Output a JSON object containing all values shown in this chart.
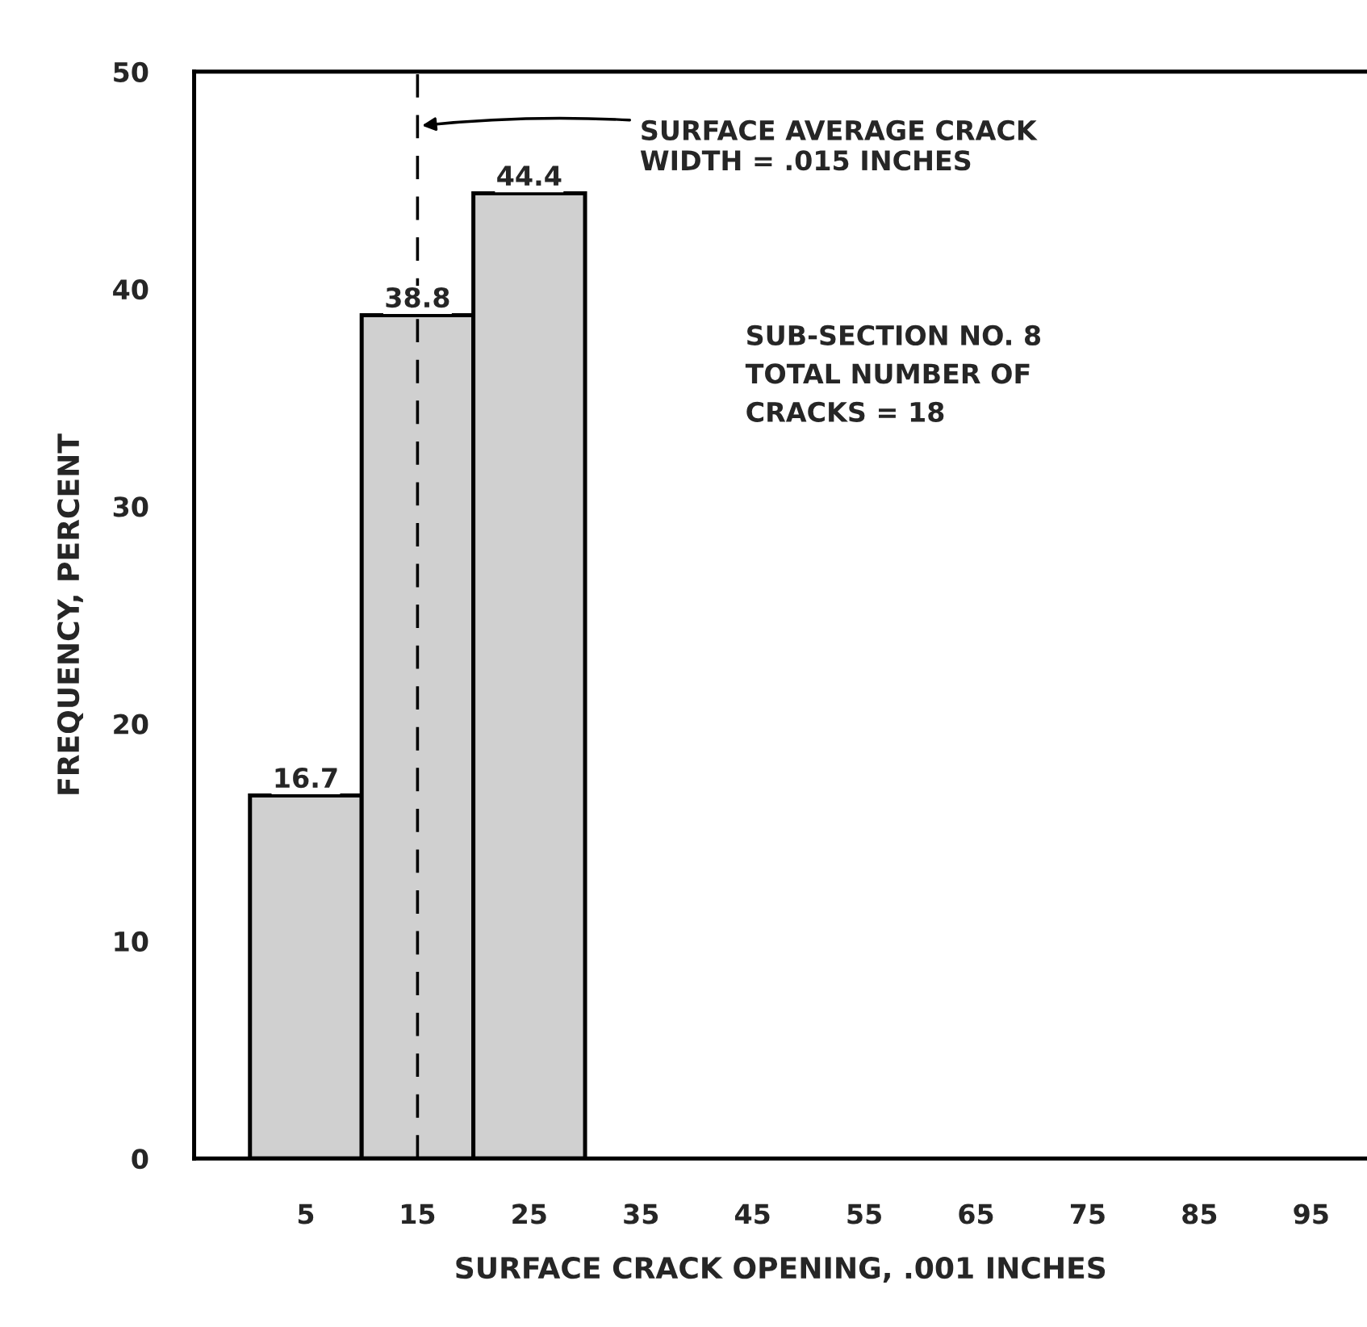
{
  "chart_data": {
    "type": "histogram",
    "xlabel": "SURFACE CRACK OPENING, .001 INCHES",
    "ylabel": "FREQUENCY, PERCENT",
    "bins": [
      0,
      10,
      20,
      30
    ],
    "values": [
      16.7,
      38.8,
      44.4
    ],
    "color": "#d0d0d0",
    "data_labels": true,
    "xlim": [
      -5,
      100
    ],
    "xticks": [
      5,
      15,
      25,
      35,
      45,
      55,
      65,
      75,
      85,
      95
    ],
    "ylim": [
      0,
      50
    ],
    "yticks": [
      0,
      10,
      20,
      30,
      40,
      50
    ],
    "grid": false,
    "ref_lines": [
      {
        "axis": "x",
        "value": 15,
        "line_style": "dashed",
        "color": "#000000"
      }
    ],
    "annotations": [
      {
        "text": "SURFACE AVERAGE CRACK\nWIDTH = .015 INCHES",
        "x": 15,
        "y": 47.5
      },
      "SUB-SECTION NO. 8\nTOTAL NUMBER OF\nCRACKS = 18"
    ]
  }
}
